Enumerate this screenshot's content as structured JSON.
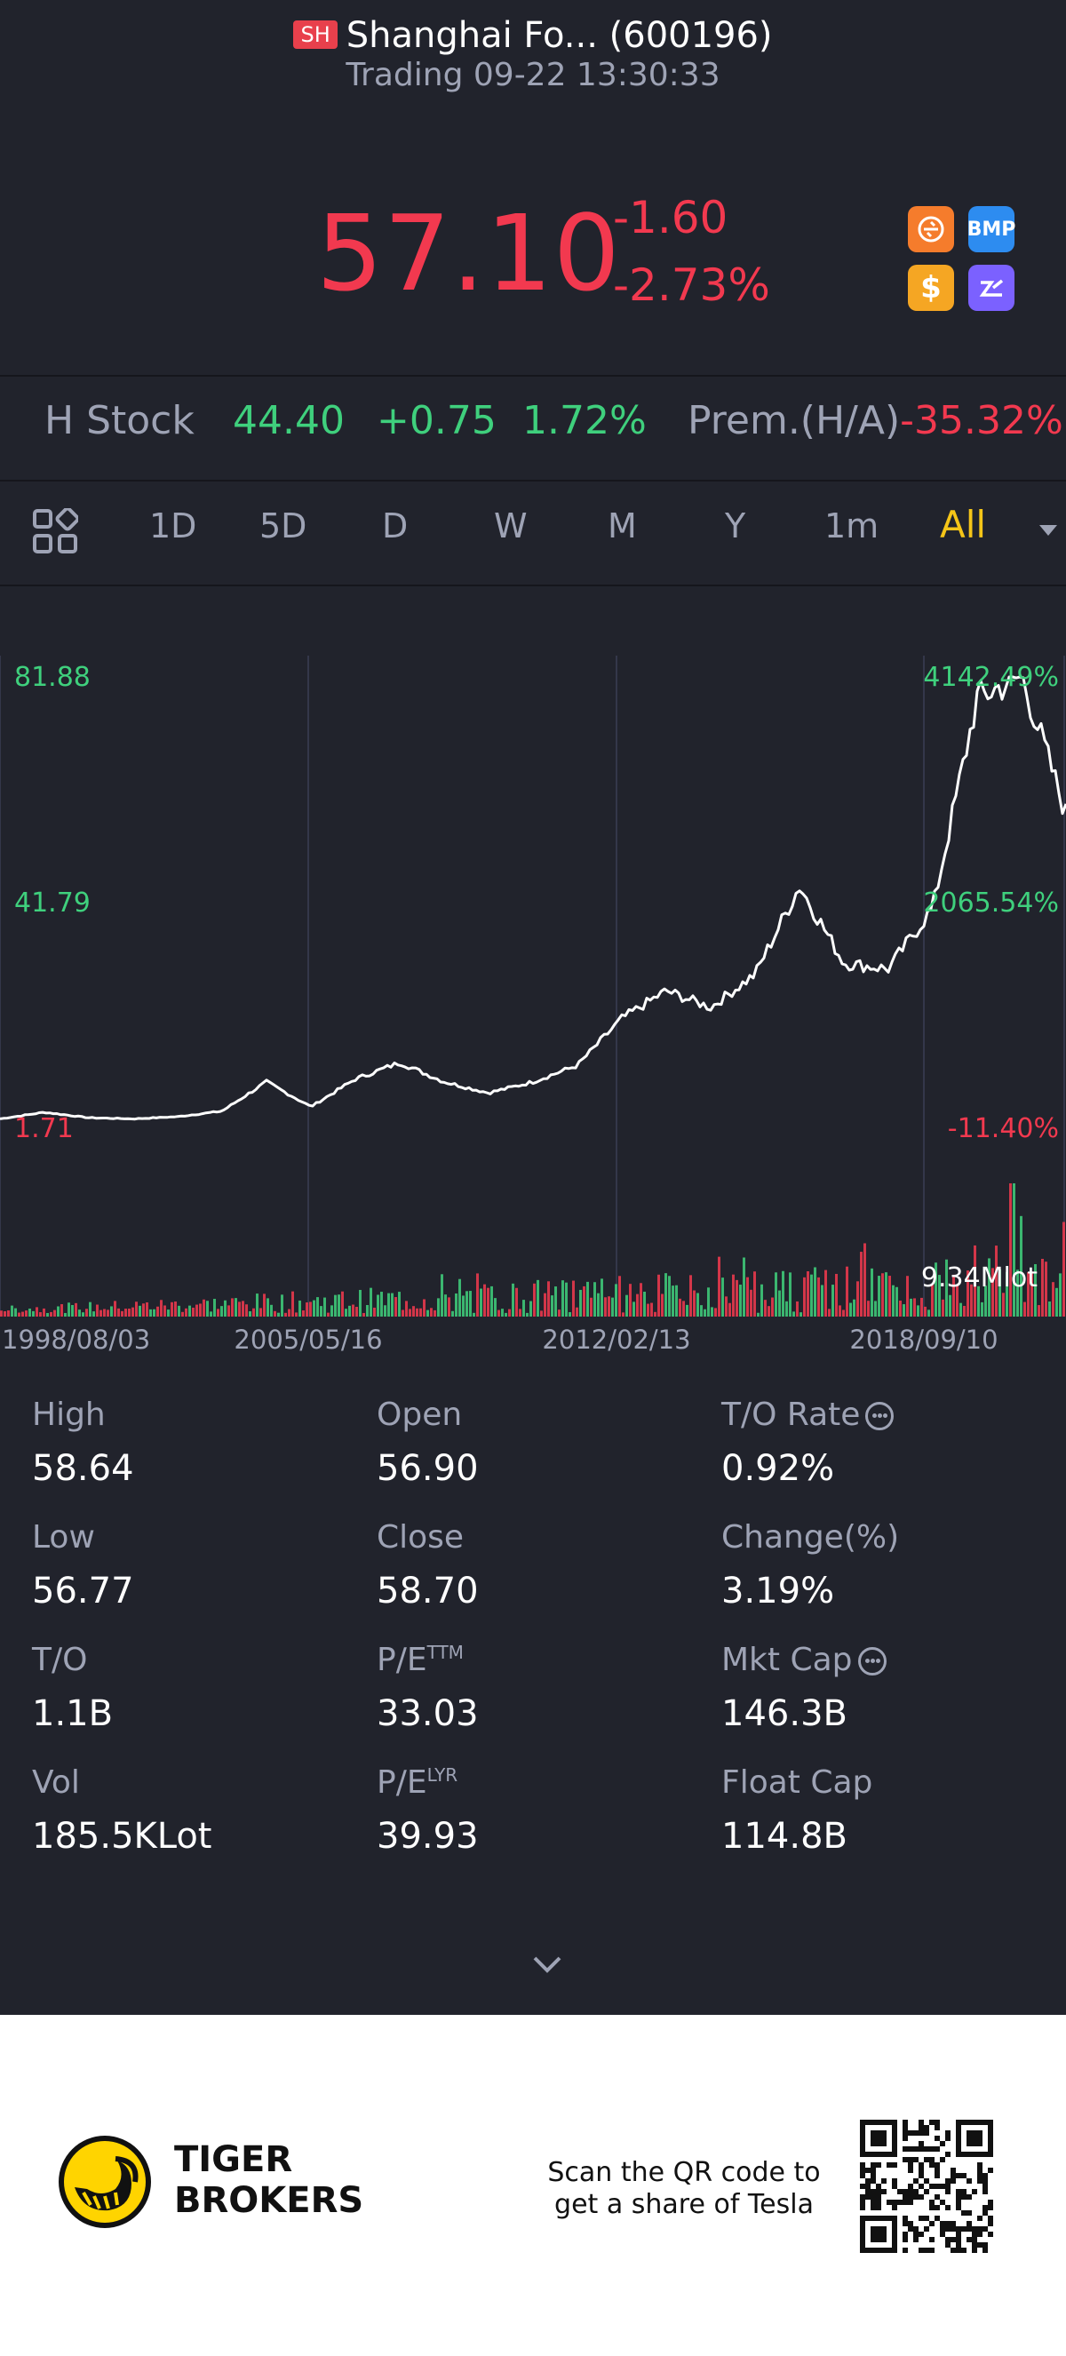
{
  "header": {
    "exchange_badge": "SH",
    "title": "Shanghai Fo... (600196)",
    "status": "Trading 09-22 13:30:33",
    "price": "57.10",
    "change": "-1.60",
    "change_pct": "-2.73%",
    "icons": [
      {
        "name": "hk-connect-icon",
        "color": "#f57c2c"
      },
      {
        "name": "bmp-icon",
        "label": "BMP",
        "color": "#2d8cf0"
      },
      {
        "name": "dollar-icon",
        "label": "$",
        "color": "#f5a623"
      },
      {
        "name": "margin-icon",
        "color": "#7b61ff"
      }
    ]
  },
  "h_stock": {
    "label": "H Stock",
    "price": "44.40",
    "change": "+0.75",
    "change_pct": "1.72%",
    "premium_label": "Prem.(H/A)",
    "premium_value": "-35.32%"
  },
  "tabs": {
    "items": [
      "1D",
      "5D",
      "D",
      "W",
      "M",
      "Y",
      "1m",
      "All"
    ],
    "active": "All"
  },
  "chart": {
    "left_axis": [
      "81.88",
      "41.79",
      "1.71"
    ],
    "right_axis": [
      "4142.49%",
      "2065.54%",
      "-11.40%"
    ],
    "x_labels": [
      "1998/08/03",
      "2005/05/16",
      "2012/02/13",
      "2018/09/10"
    ],
    "volume_label": "9.34Mlot"
  },
  "chart_data": {
    "type": "line",
    "title": "",
    "x": [
      "1998/08/03",
      "2000/01",
      "2002/01",
      "2004/01",
      "2005/05/16",
      "2006/06",
      "2007/03",
      "2008/02",
      "2009/06",
      "2010/03",
      "2011/01",
      "2012/02/13",
      "2013/03",
      "2014/01",
      "2015/05",
      "2016/01",
      "2017/06",
      "2018/03",
      "2018/09/10",
      "2019/06",
      "2020/02",
      "2020/08",
      "2021/02",
      "2021/07",
      "2021/09"
    ],
    "values": [
      1.8,
      3.0,
      2.0,
      1.8,
      2.2,
      3.2,
      8.5,
      4.0,
      9.0,
      12.0,
      8.5,
      6.5,
      8.5,
      11.5,
      20.0,
      25.0,
      22.0,
      28.0,
      44.0,
      30.0,
      29.0,
      40.0,
      78.0,
      82.0,
      57.1
    ],
    "ylim": [
      1.71,
      81.88
    ],
    "volume_max": "9.34Mlot",
    "grid": true
  },
  "stats": [
    {
      "label": "High",
      "value": "58.64"
    },
    {
      "label": "Open",
      "value": "56.90"
    },
    {
      "label": "T/O Rate",
      "value": "0.92%"
    },
    {
      "label": "Low",
      "value": "56.77"
    },
    {
      "label": "Close",
      "value": "58.70"
    },
    {
      "label": "Change(%)",
      "value": "3.19%"
    },
    {
      "label": "T/O",
      "value": "1.1B"
    },
    {
      "label": "P/E",
      "sup": "TTM",
      "value": "33.03"
    },
    {
      "label": "Mkt Cap",
      "value": "146.3B"
    },
    {
      "label": "Vol",
      "value": "185.5KLot"
    },
    {
      "label": "P/E",
      "sup": "LYR",
      "value": "39.93"
    },
    {
      "label": "Float Cap",
      "value": "114.8B"
    }
  ],
  "footer": {
    "brand_line1": "TIGER",
    "brand_line2": "BROKERS",
    "promo_line1": "Scan the QR code to",
    "promo_line2": "get a share of Tesla"
  }
}
